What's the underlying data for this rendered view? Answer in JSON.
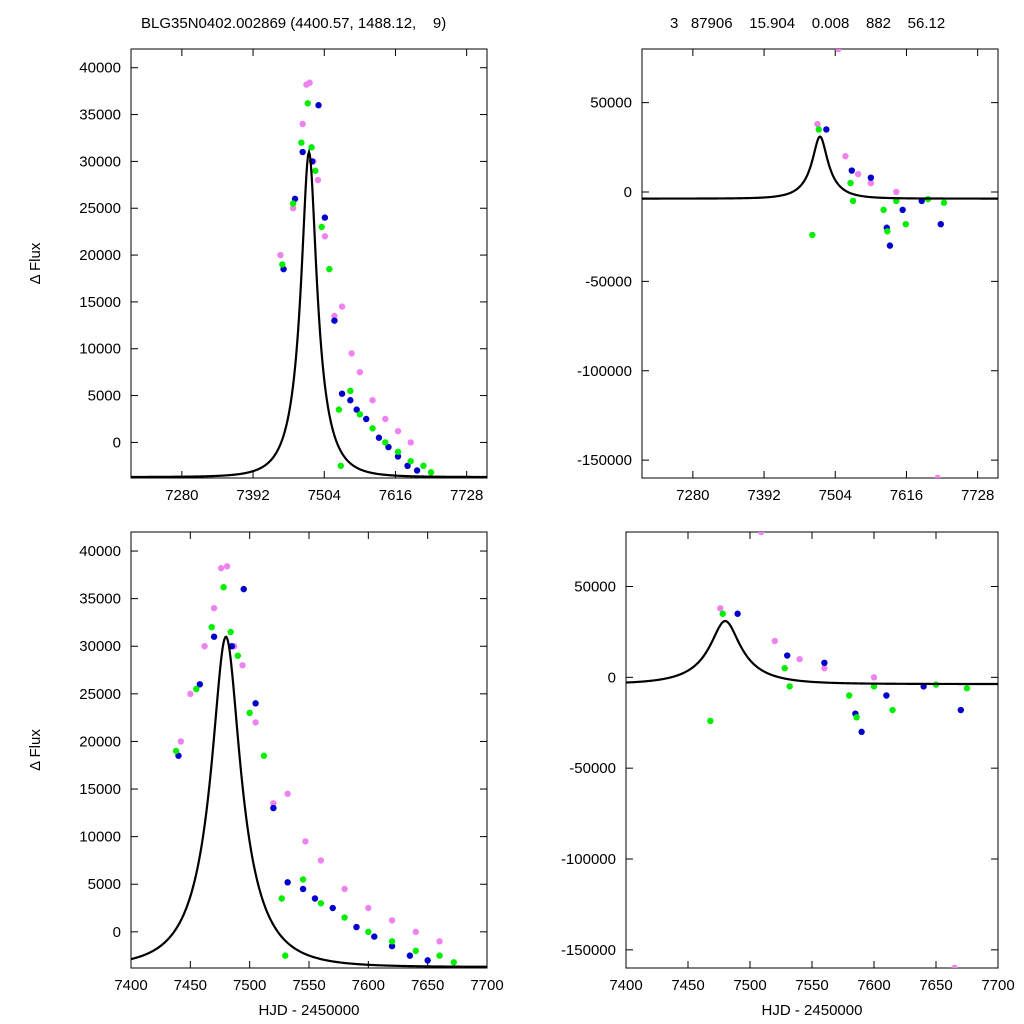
{
  "header": {
    "left_title": "BLG35N0402.002869 (4400.57, 1488.12,    9)",
    "right_title": "3   87906    15.904    0.008    882    56.12"
  },
  "model": {
    "t0": 7480,
    "u0": 0.3,
    "tE": 40,
    "baseline_flux": -3700,
    "peak_flux": 31000
  },
  "chart_data": [
    {
      "id": "top-left",
      "type": "scatter",
      "title": "",
      "xlabel": "",
      "ylabel": "Δ Flux",
      "xlim": [
        7200,
        7760
      ],
      "ylim": [
        -3800,
        42000
      ],
      "xticks": [
        7280,
        7392,
        7504,
        7616,
        7728
      ],
      "yticks": [
        0,
        5000,
        10000,
        15000,
        20000,
        25000,
        30000,
        35000,
        40000
      ],
      "series": [
        {
          "color": "#ee82ee",
          "points": [
            [
              7435,
              20000
            ],
            [
              7455,
              25000
            ],
            [
              7470,
              34000
            ],
            [
              7476,
              38200
            ],
            [
              7481,
              38400
            ],
            [
              7487,
              30000
            ],
            [
              7494,
              28000
            ],
            [
              7505,
              22000
            ],
            [
              7520,
              13500
            ],
            [
              7532,
              14500
            ],
            [
              7547,
              9500
            ],
            [
              7560,
              7500
            ],
            [
              7580,
              4500
            ],
            [
              7600,
              2500
            ],
            [
              7620,
              1200
            ],
            [
              7640,
              0
            ]
          ]
        },
        {
          "color": "#0000cc",
          "points": [
            [
              7440,
              18500
            ],
            [
              7458,
              26000
            ],
            [
              7470,
              31000
            ],
            [
              7485,
              30000
            ],
            [
              7495,
              36000
            ],
            [
              7505,
              24000
            ],
            [
              7520,
              13000
            ],
            [
              7532,
              5200
            ],
            [
              7545,
              4500
            ],
            [
              7555,
              3500
            ],
            [
              7570,
              2500
            ],
            [
              7590,
              500
            ],
            [
              7605,
              -500
            ],
            [
              7620,
              -1500
            ],
            [
              7635,
              -2500
            ],
            [
              7650,
              -3000
            ]
          ]
        },
        {
          "color": "#00ee00",
          "points": [
            [
              7438,
              19000
            ],
            [
              7455,
              25500
            ],
            [
              7468,
              32000
            ],
            [
              7478,
              36200
            ],
            [
              7484,
              31500
            ],
            [
              7490,
              29000
            ],
            [
              7500,
              23000
            ],
            [
              7512,
              18500
            ],
            [
              7527,
              3500
            ],
            [
              7530,
              -2500
            ],
            [
              7545,
              5500
            ],
            [
              7560,
              3000
            ],
            [
              7580,
              1500
            ],
            [
              7600,
              0
            ],
            [
              7620,
              -1000
            ],
            [
              7640,
              -2000
            ],
            [
              7660,
              -2500
            ],
            [
              7672,
              -3200
            ]
          ]
        }
      ]
    },
    {
      "id": "top-right",
      "type": "scatter",
      "title": "",
      "xlabel": "",
      "ylabel": "",
      "xlim": [
        7200,
        7760
      ],
      "ylim": [
        -160000,
        80000
      ],
      "xticks": [
        7280,
        7392,
        7504,
        7616,
        7728
      ],
      "yticks": [
        -150000,
        -100000,
        -50000,
        0,
        50000
      ],
      "series": [
        {
          "color": "#ee82ee",
          "points": [
            [
              7476,
              38000
            ],
            [
              7509,
              80000
            ],
            [
              7520,
              20000
            ],
            [
              7540,
              10000
            ],
            [
              7560,
              5000
            ],
            [
              7600,
              0
            ],
            [
              7665,
              -160000
            ]
          ]
        },
        {
          "color": "#0000cc",
          "points": [
            [
              7490,
              35000
            ],
            [
              7530,
              12000
            ],
            [
              7560,
              8000
            ],
            [
              7585,
              -20000
            ],
            [
              7590,
              -30000
            ],
            [
              7610,
              -10000
            ],
            [
              7640,
              -5000
            ],
            [
              7670,
              -18000
            ]
          ]
        },
        {
          "color": "#00ee00",
          "points": [
            [
              7468,
              -24000
            ],
            [
              7478,
              35000
            ],
            [
              7528,
              5000
            ],
            [
              7532,
              -5000
            ],
            [
              7580,
              -10000
            ],
            [
              7586,
              -22000
            ],
            [
              7600,
              -5000
            ],
            [
              7615,
              -18000
            ],
            [
              7650,
              -4000
            ],
            [
              7675,
              -6000
            ]
          ]
        }
      ]
    },
    {
      "id": "bottom-left",
      "type": "scatter",
      "title": "",
      "xlabel": "HJD - 2450000",
      "ylabel": "Δ Flux",
      "xlim": [
        7400,
        7700
      ],
      "ylim": [
        -3800,
        42000
      ],
      "xticks": [
        7400,
        7450,
        7500,
        7550,
        7600,
        7650,
        7700
      ],
      "yticks": [
        0,
        5000,
        10000,
        15000,
        20000,
        25000,
        30000,
        35000,
        40000
      ],
      "series": [
        {
          "color": "#ee82ee",
          "points": [
            [
              7442,
              20000
            ],
            [
              7450,
              25000
            ],
            [
              7462,
              30000
            ],
            [
              7470,
              34000
            ],
            [
              7476,
              38200
            ],
            [
              7481,
              38400
            ],
            [
              7487,
              30000
            ],
            [
              7494,
              28000
            ],
            [
              7505,
              22000
            ],
            [
              7520,
              13500
            ],
            [
              7532,
              14500
            ],
            [
              7547,
              9500
            ],
            [
              7560,
              7500
            ],
            [
              7580,
              4500
            ],
            [
              7600,
              2500
            ],
            [
              7620,
              1200
            ],
            [
              7640,
              0
            ],
            [
              7660,
              -1000
            ]
          ]
        },
        {
          "color": "#0000cc",
          "points": [
            [
              7440,
              18500
            ],
            [
              7458,
              26000
            ],
            [
              7470,
              31000
            ],
            [
              7485,
              30000
            ],
            [
              7495,
              36000
            ],
            [
              7505,
              24000
            ],
            [
              7520,
              13000
            ],
            [
              7532,
              5200
            ],
            [
              7545,
              4500
            ],
            [
              7555,
              3500
            ],
            [
              7570,
              2500
            ],
            [
              7590,
              500
            ],
            [
              7605,
              -500
            ],
            [
              7620,
              -1500
            ],
            [
              7635,
              -2500
            ],
            [
              7650,
              -3000
            ]
          ]
        },
        {
          "color": "#00ee00",
          "points": [
            [
              7438,
              19000
            ],
            [
              7455,
              25500
            ],
            [
              7468,
              32000
            ],
            [
              7478,
              36200
            ],
            [
              7484,
              31500
            ],
            [
              7490,
              29000
            ],
            [
              7500,
              23000
            ],
            [
              7512,
              18500
            ],
            [
              7527,
              3500
            ],
            [
              7530,
              -2500
            ],
            [
              7545,
              5500
            ],
            [
              7560,
              3000
            ],
            [
              7580,
              1500
            ],
            [
              7600,
              0
            ],
            [
              7620,
              -1000
            ],
            [
              7640,
              -2000
            ],
            [
              7660,
              -2500
            ],
            [
              7672,
              -3200
            ]
          ]
        }
      ]
    },
    {
      "id": "bottom-right",
      "type": "scatter",
      "title": "",
      "xlabel": "HJD - 2450000",
      "ylabel": "",
      "xlim": [
        7400,
        7700
      ],
      "ylim": [
        -160000,
        80000
      ],
      "xticks": [
        7400,
        7450,
        7500,
        7550,
        7600,
        7650,
        7700
      ],
      "yticks": [
        -150000,
        -100000,
        -50000,
        0,
        50000
      ],
      "series": [
        {
          "color": "#ee82ee",
          "points": [
            [
              7476,
              38000
            ],
            [
              7509,
              80000
            ],
            [
              7520,
              20000
            ],
            [
              7540,
              10000
            ],
            [
              7560,
              5000
            ],
            [
              7600,
              0
            ],
            [
              7665,
              -160000
            ]
          ]
        },
        {
          "color": "#0000cc",
          "points": [
            [
              7490,
              35000
            ],
            [
              7530,
              12000
            ],
            [
              7560,
              8000
            ],
            [
              7585,
              -20000
            ],
            [
              7590,
              -30000
            ],
            [
              7610,
              -10000
            ],
            [
              7640,
              -5000
            ],
            [
              7670,
              -18000
            ]
          ]
        },
        {
          "color": "#00ee00",
          "points": [
            [
              7468,
              -24000
            ],
            [
              7478,
              35000
            ],
            [
              7528,
              5000
            ],
            [
              7532,
              -5000
            ],
            [
              7580,
              -10000
            ],
            [
              7586,
              -22000
            ],
            [
              7600,
              -5000
            ],
            [
              7615,
              -18000
            ],
            [
              7650,
              -4000
            ],
            [
              7675,
              -6000
            ]
          ]
        }
      ]
    }
  ]
}
